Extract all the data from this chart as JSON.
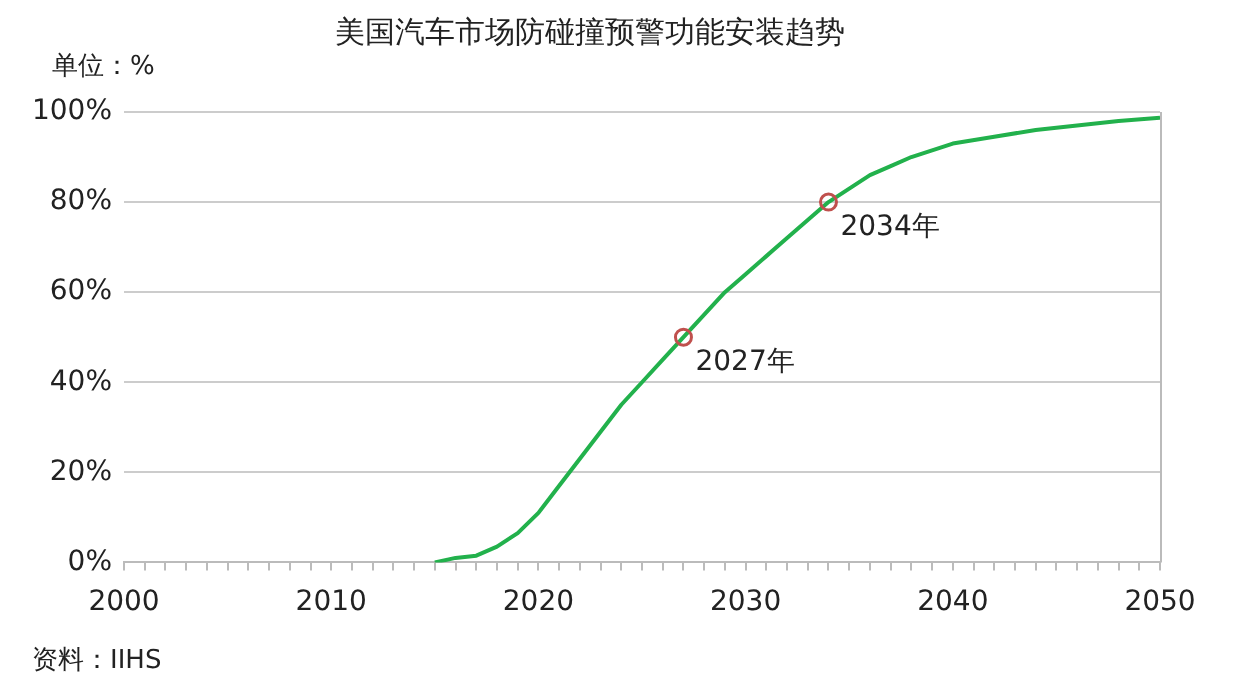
{
  "chart_data": {
    "type": "line",
    "title": "美国汽车市场防碰撞预警功能安装趋势",
    "ylabel": "单位：%",
    "x": [
      2015,
      2016,
      2017,
      2018,
      2019,
      2020,
      2021,
      2022,
      2023,
      2024,
      2025,
      2026,
      2027,
      2028,
      2029,
      2030,
      2031,
      2032,
      2033,
      2034,
      2035,
      2036,
      2037,
      2038,
      2039,
      2040,
      2042,
      2044,
      2046,
      2048,
      2050
    ],
    "series": [
      {
        "color": "#22b14c",
        "values": [
          0,
          1,
          1.5,
          3.5,
          6.5,
          11,
          17,
          23,
          29,
          35,
          40,
          45,
          50,
          55,
          60,
          64,
          68,
          72,
          76,
          80,
          83,
          86,
          88,
          90,
          91.5,
          93,
          94.5,
          96,
          97,
          98,
          98.7
        ]
      }
    ],
    "xlim": [
      2000,
      2050
    ],
    "xticks": [
      2000,
      {
        "value": 2001,
        "label": null
      },
      {
        "value": 2002,
        "label": null
      },
      {
        "value": 2003,
        "label": null
      },
      {
        "value": 2004,
        "label": null
      },
      {
        "value": 2005,
        "label": null
      },
      {
        "value": 2006,
        "label": null
      },
      {
        "value": 2007,
        "label": null
      },
      {
        "value": 2008,
        "label": null
      },
      {
        "value": 2009,
        "label": null
      },
      2010,
      {
        "value": 2011,
        "label": null
      },
      {
        "value": 2012,
        "label": null
      },
      {
        "value": 2013,
        "label": null
      },
      {
        "value": 2014,
        "label": null
      },
      {
        "value": 2015,
        "label": null
      },
      {
        "value": 2016,
        "label": null
      },
      {
        "value": 2017,
        "label": null
      },
      {
        "value": 2018,
        "label": null
      },
      {
        "value": 2019,
        "label": null
      },
      2020,
      {
        "value": 2021,
        "label": null
      },
      {
        "value": 2022,
        "label": null
      },
      {
        "value": 2023,
        "label": null
      },
      {
        "value": 2024,
        "label": null
      },
      {
        "value": 2025,
        "label": null
      },
      {
        "value": 2026,
        "label": null
      },
      {
        "value": 2027,
        "label": null
      },
      {
        "value": 2028,
        "label": null
      },
      {
        "value": 2029,
        "label": null
      },
      2030,
      {
        "value": 2031,
        "label": null
      },
      {
        "value": 2032,
        "label": null
      },
      {
        "value": 2033,
        "label": null
      },
      {
        "value": 2034,
        "label": null
      },
      {
        "value": 2035,
        "label": null
      },
      {
        "value": 2036,
        "label": null
      },
      {
        "value": 2037,
        "label": null
      },
      {
        "value": 2038,
        "label": null
      },
      {
        "value": 2039,
        "label": null
      },
      2040,
      {
        "value": 2041,
        "label": null
      },
      {
        "value": 2042,
        "label": null
      },
      {
        "value": 2043,
        "label": null
      },
      {
        "value": 2044,
        "label": null
      },
      {
        "value": 2045,
        "label": null
      },
      {
        "value": 2046,
        "label": null
      },
      {
        "value": 2047,
        "label": null
      },
      {
        "value": 2048,
        "label": null
      },
      {
        "value": 2049,
        "label": null
      },
      2050
    ],
    "ylim": [
      0,
      100
    ],
    "yticks": [
      {
        "value": 0,
        "label": "0%"
      },
      {
        "value": 20,
        "label": "20%"
      },
      {
        "value": 40,
        "label": "40%"
      },
      {
        "value": 60,
        "label": "60%"
      },
      {
        "value": 80,
        "label": "80%"
      },
      {
        "value": 100,
        "label": "100%"
      }
    ],
    "grid": "y",
    "legend": false,
    "marker": "none",
    "line_style": "solid",
    "annotations": [
      {
        "text": "2027年",
        "x": 2027,
        "y": 50
      },
      {
        "text": "2034年",
        "x": 2034,
        "y": 80
      },
      "资料：IIHS"
    ]
  }
}
